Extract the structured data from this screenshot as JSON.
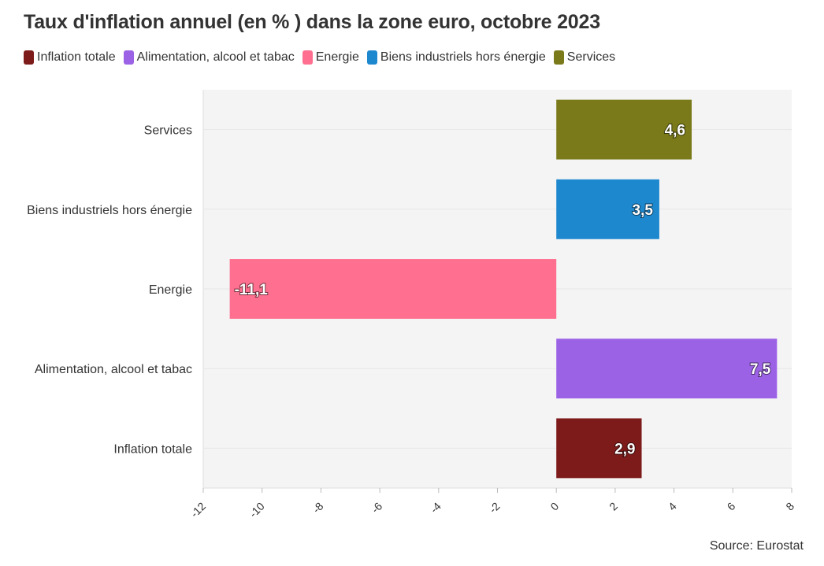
{
  "title": "Taux d'inflation annuel (en % ) dans la zone euro, octobre 2023",
  "source": "Source: Eurostat",
  "chart_data": {
    "type": "bar",
    "orientation": "horizontal",
    "title": "Taux d'inflation annuel (en % ) dans la zone euro, octobre 2023",
    "categories": [
      "Services",
      "Biens industriels hors énergie",
      "Energie",
      "Alimentation, alcool et tabac",
      "Inflation totale"
    ],
    "values": [
      4.6,
      3.5,
      -11.1,
      7.5,
      2.9
    ],
    "value_labels": [
      "4,6",
      "3,5",
      "-11,1",
      "7,5",
      "2,9"
    ],
    "colors": [
      "#7a7a1a",
      "#1e88cf",
      "#ff6f8f",
      "#9c62e6",
      "#7d1a1a"
    ],
    "xlim": [
      -12,
      8
    ],
    "x_ticks": [
      -12,
      -10,
      -8,
      -6,
      -4,
      -2,
      0,
      2,
      4,
      6,
      8
    ],
    "legend": [
      {
        "label": "Inflation totale",
        "color": "#7d1a1a"
      },
      {
        "label": "Alimentation, alcool et tabac",
        "color": "#9c62e6"
      },
      {
        "label": "Energie",
        "color": "#ff6f8f"
      },
      {
        "label": "Biens industriels hors énergie",
        "color": "#1e88cf"
      },
      {
        "label": "Services",
        "color": "#7a7a1a"
      }
    ],
    "legend_position": "top-left",
    "grid": true,
    "xlabel": "",
    "ylabel": ""
  }
}
